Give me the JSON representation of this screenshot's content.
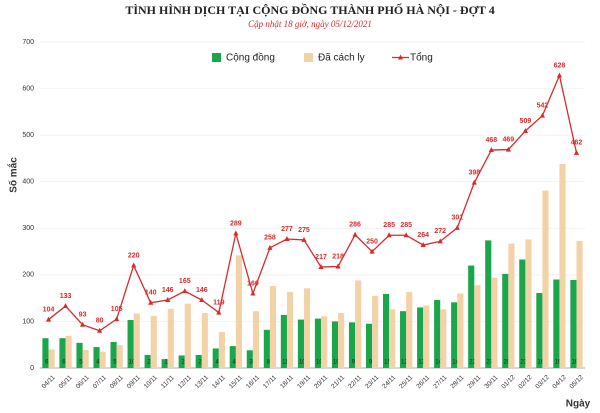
{
  "chart_data": {
    "type": "combo",
    "title": "TÌNH HÌNH DỊCH TẠI CỘNG ĐỒNG THÀNH PHỐ HÀ NỘI - ĐỢT 4",
    "subtitle": "Cập nhật 18 giờ, ngày 05/12/2021",
    "y_label": "Số mắc",
    "x_label": "Ngày",
    "categories": [
      "04/11",
      "05/11",
      "06/11",
      "07/11",
      "08/11",
      "09/11",
      "10/11",
      "11/11",
      "12/11",
      "13/11",
      "14/11",
      "15/11",
      "16/11",
      "17/11",
      "18/11",
      "19/11",
      "20/11",
      "21/11",
      "22/11",
      "23/11",
      "24/11",
      "25/11",
      "26/11",
      "27/11",
      "28/11",
      "29/11",
      "30/11",
      "01/12",
      "02/12",
      "03/12",
      "04/12",
      "05/12"
    ],
    "series": [
      {
        "name": "Cộng đồng",
        "type": "bar",
        "color": "#1aa64b",
        "values": [
          64,
          64,
          54,
          45,
          56,
          103,
          28,
          19,
          27,
          28,
          42,
          47,
          38,
          82,
          114,
          104,
          106,
          100,
          98,
          95,
          159,
          122,
          130,
          146,
          141,
          220,
          274,
          202,
          233,
          161,
          190,
          189
        ]
      },
      {
        "name": "Đã cách ly",
        "type": "bar",
        "color": "#f3d2a8",
        "values": [
          40,
          69,
          39,
          35,
          49,
          117,
          112,
          127,
          138,
          118,
          77,
          242,
          122,
          176,
          163,
          171,
          111,
          118,
          188,
          155,
          126,
          163,
          134,
          126,
          160,
          178,
          194,
          267,
          276,
          381,
          438,
          273
        ]
      },
      {
        "name": "Tổng",
        "type": "line",
        "color": "#d92b2b",
        "values": [
          104,
          133,
          93,
          80,
          105,
          220,
          140,
          146,
          165,
          146,
          119,
          289,
          160,
          258,
          277,
          275,
          217,
          218,
          286,
          250,
          285,
          285,
          264,
          272,
          301,
          398,
          468,
          469,
          509,
          542,
          628,
          462
        ]
      }
    ],
    "ylim": [
      0,
      700
    ],
    "yticks": [
      0,
      100,
      200,
      300,
      400,
      500,
      600,
      700
    ],
    "grid": true
  }
}
